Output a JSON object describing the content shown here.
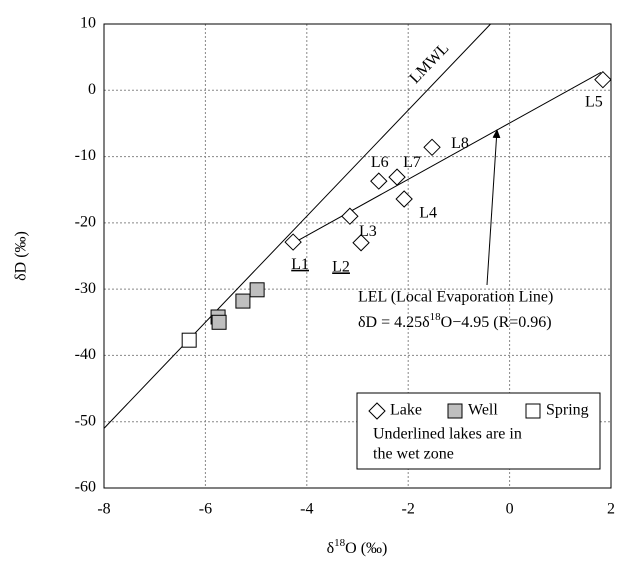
{
  "chart_data": {
    "type": "scatter",
    "x_label": [
      "δ",
      "18",
      "O (‰)"
    ],
    "y_label": "δD (‰)",
    "xlim": [
      -8,
      2
    ],
    "xticks": [
      -8,
      -6,
      -4,
      -2,
      0,
      2
    ],
    "ylim": [
      -60,
      10
    ],
    "yticks": [
      -60,
      -50,
      -40,
      -30,
      -20,
      -10,
      0,
      10
    ],
    "grid": true,
    "series": [
      {
        "name": "Lake",
        "marker": "diamond",
        "color": "#ffffff",
        "x": [
          -4.27,
          -2.93,
          -3.15,
          -2.08,
          -2.58,
          -2.22,
          -1.53,
          1.84
        ],
        "values": [
          -22.9,
          -23.0,
          -19.0,
          -16.4,
          -13.7,
          -13.1,
          -8.6,
          1.6
        ],
        "point_labels": [
          "L1",
          "L2",
          "L3",
          "L4",
          "L6",
          "L7",
          "L8",
          "L5"
        ],
        "underlined": [
          true,
          true,
          false,
          false,
          false,
          false,
          false,
          false
        ]
      },
      {
        "name": "Well",
        "marker": "square",
        "color": "#bfbfbf",
        "x": [
          -5.75,
          -5.73,
          -5.26,
          -4.98
        ],
        "values": [
          -34.2,
          -35.0,
          -31.8,
          -30.1
        ]
      },
      {
        "name": "Spring",
        "marker": "square",
        "color": "#ffffff",
        "x": [
          -6.32
        ],
        "values": [
          -37.7
        ]
      }
    ],
    "lines": [
      {
        "name": "LMWL",
        "x": [
          -8,
          -0.375
        ],
        "values": [
          -51,
          10
        ]
      },
      {
        "x": [
          -4.3,
          1.8
        ],
        "values": [
          -23.2,
          2.7
        ]
      }
    ],
    "annotation": {
      "title": "LEL (Local Evaporation Line)",
      "equation": [
        "δD = 4.25δ",
        "18",
        "O−4.95 (R=0.96)"
      ]
    },
    "legend_note": [
      "Underlined lakes are in",
      "the wet zone"
    ]
  }
}
